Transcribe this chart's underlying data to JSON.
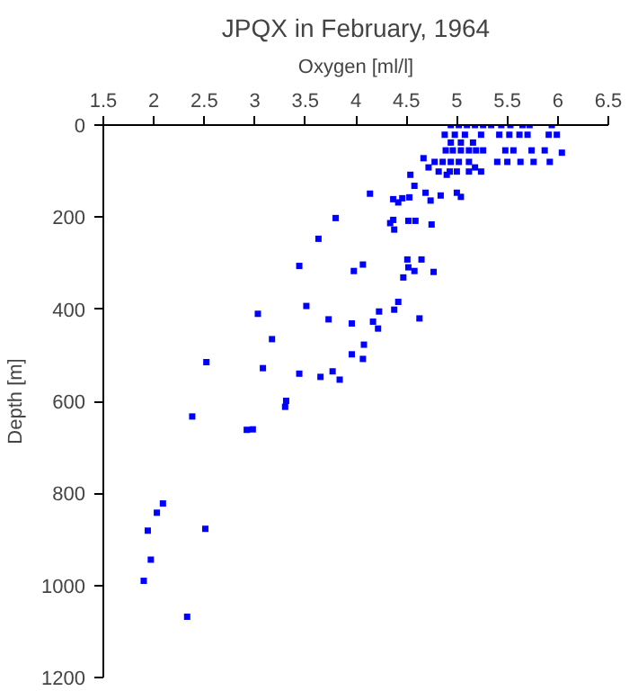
{
  "chart_data": {
    "type": "scatter",
    "title": "JPQX in February, 1964",
    "xlabel": "Oxygen [ml/l]",
    "ylabel": "Depth [m]",
    "marker": "square",
    "grid": false,
    "xlim": [
      1.5,
      6.5
    ],
    "xticks": [
      1.5,
      2,
      2.5,
      3,
      3.5,
      4,
      4.5,
      5,
      5.5,
      6,
      6.5
    ],
    "ylim": [
      1200,
      0
    ],
    "yticks": [
      0,
      200,
      400,
      600,
      800,
      1000,
      1200
    ],
    "series": [
      {
        "color": "#0000ff",
        "x": [
          4.94,
          5.02,
          5.1,
          5.18,
          5.26,
          5.34,
          5.44,
          5.53,
          5.65,
          5.72,
          5.94,
          4.88,
          4.98,
          5.08,
          5.24,
          5.42,
          5.52,
          5.62,
          5.7,
          5.91,
          5.99,
          4.94,
          5.04,
          5.16,
          4.89,
          4.96,
          5.04,
          5.12,
          5.19,
          5.26,
          5.48,
          5.56,
          5.74,
          5.87,
          6.04,
          4.67,
          4.78,
          4.86,
          4.94,
          5.02,
          5.12,
          5.4,
          5.5,
          5.63,
          5.76,
          5.92,
          4.72,
          5.18,
          4.82,
          4.93,
          5.0,
          5.12,
          5.24,
          4.54,
          4.9,
          4.58,
          4.69,
          5.0,
          4.84,
          5.04,
          4.14,
          4.74,
          4.37,
          4.42,
          4.46,
          4.53,
          3.8,
          3.63,
          4.34,
          4.37,
          4.38,
          4.52,
          4.59,
          4.75,
          4.51,
          4.65,
          4.52,
          4.58,
          4.77,
          4.07,
          3.98,
          3.44,
          4.47,
          4.42,
          4.38,
          4.23,
          4.22,
          4.17,
          4.63,
          3.96,
          3.96,
          4.08,
          4.07,
          3.84,
          3.77,
          3.73,
          3.65,
          3.51,
          3.44,
          3.3,
          3.31,
          3.17,
          3.08,
          3.03,
          2.92,
          2.98,
          2.52,
          2.38,
          2.51,
          2.09,
          2.03,
          1.94,
          1.97,
          1.9,
          2.33
        ],
        "values": [
          0,
          0,
          0,
          0,
          0,
          0,
          0,
          0,
          0,
          0,
          0,
          21,
          21,
          21,
          21,
          21,
          21,
          21,
          21,
          21,
          21,
          38,
          38,
          38,
          55,
          55,
          55,
          55,
          55,
          55,
          55,
          55,
          55,
          55,
          60,
          72,
          80,
          80,
          80,
          80,
          80,
          80,
          80,
          80,
          80,
          80,
          92,
          92,
          101,
          101,
          101,
          101,
          101,
          108,
          108,
          132,
          147,
          147,
          153,
          156,
          149,
          164,
          161,
          168,
          159,
          157,
          202,
          247,
          213,
          206,
          227,
          208,
          208,
          216,
          292,
          292,
          309,
          317,
          319,
          303,
          317,
          306,
          331,
          384,
          401,
          405,
          442,
          427,
          420,
          431,
          498,
          477,
          508,
          553,
          535,
          422,
          547,
          393,
          540,
          612,
          599,
          465,
          528,
          410,
          662,
          661,
          515,
          633,
          877,
          822,
          842,
          881,
          944,
          990,
          1068
        ]
      }
    ]
  }
}
